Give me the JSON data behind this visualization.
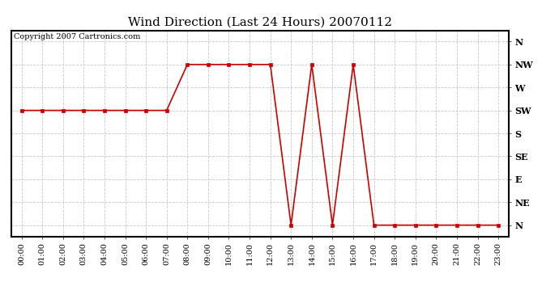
{
  "title": "Wind Direction (Last 24 Hours) 20070112",
  "copyright": "Copyright 2007 Cartronics.com",
  "line_color": "#cc0000",
  "marker": "s",
  "marker_size": 3,
  "background_color": "#ffffff",
  "grid_color": "#c8c8c8",
  "hours": [
    0,
    1,
    2,
    3,
    4,
    5,
    6,
    7,
    8,
    9,
    10,
    11,
    12,
    13,
    14,
    15,
    16,
    17,
    18,
    19,
    20,
    21,
    22,
    23
  ],
  "values": [
    225,
    225,
    225,
    225,
    225,
    225,
    225,
    225,
    315,
    315,
    315,
    315,
    315,
    0,
    315,
    0,
    315,
    0,
    0,
    0,
    0,
    0,
    0,
    0
  ],
  "yticks": [
    360,
    315,
    270,
    225,
    180,
    135,
    90,
    45,
    0
  ],
  "ytick_labels": [
    "N",
    "NW",
    "W",
    "SW",
    "S",
    "SE",
    "E",
    "NE",
    "N"
  ],
  "ylim": [
    -22,
    382
  ],
  "xlim": [
    -0.5,
    23.5
  ],
  "xtick_labels": [
    "00:00",
    "01:00",
    "02:00",
    "03:00",
    "04:00",
    "05:00",
    "06:00",
    "07:00",
    "08:00",
    "09:00",
    "10:00",
    "11:00",
    "12:00",
    "13:00",
    "14:00",
    "15:00",
    "16:00",
    "17:00",
    "18:00",
    "19:00",
    "20:00",
    "21:00",
    "22:00",
    "23:00"
  ],
  "title_fontsize": 11,
  "copyright_fontsize": 7,
  "ytick_fontsize": 8,
  "xtick_fontsize": 7,
  "border_color": "#000000",
  "border_linewidth": 1.5
}
